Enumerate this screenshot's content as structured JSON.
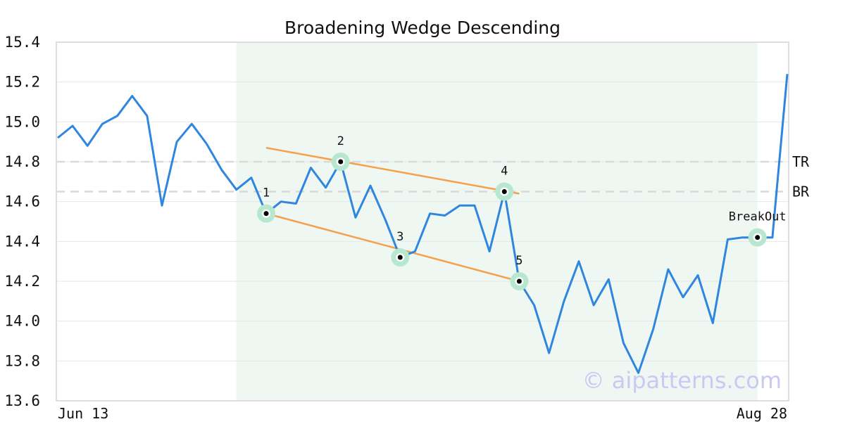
{
  "chart_data": {
    "type": "line",
    "title": "Broadening Wedge Descending",
    "xlabel": "",
    "ylabel": "",
    "ylim": [
      13.6,
      15.4
    ],
    "yticks": [
      13.6,
      13.8,
      14.0,
      14.2,
      14.4,
      14.6,
      14.8,
      15.0,
      15.2,
      15.4
    ],
    "x_tick_labels": [
      {
        "index": 0,
        "label": "Jun 13"
      },
      {
        "index": 49,
        "label": "Aug 28"
      }
    ],
    "grid": true,
    "series": [
      {
        "color": "#2e86de",
        "values": [
          14.92,
          14.98,
          14.88,
          14.99,
          15.03,
          15.13,
          15.03,
          14.58,
          14.9,
          14.99,
          14.89,
          14.76,
          14.66,
          14.72,
          14.54,
          14.6,
          14.59,
          14.77,
          14.67,
          14.8,
          14.52,
          14.68,
          14.51,
          14.32,
          14.35,
          14.54,
          14.53,
          14.58,
          14.58,
          14.35,
          14.65,
          14.2,
          14.08,
          13.84,
          14.1,
          14.3,
          14.08,
          14.21,
          13.89,
          13.74,
          13.96,
          14.26,
          14.12,
          14.23,
          13.99,
          14.41,
          14.42,
          14.42,
          14.42,
          15.24
        ]
      }
    ],
    "pattern_zone": {
      "start_index": 12,
      "end_index": 47,
      "color": "#eff7f3"
    },
    "levels": [
      {
        "label": "TR",
        "value": 14.8
      },
      {
        "label": "BR",
        "value": 14.65
      }
    ],
    "trend_lines": [
      {
        "from": {
          "index": 14,
          "value": 14.87
        },
        "to": {
          "index": 31,
          "value": 14.64
        },
        "color": "#f5a04a"
      },
      {
        "from": {
          "index": 14,
          "value": 14.54
        },
        "to": {
          "index": 31,
          "value": 14.2
        },
        "color": "#f5a04a"
      }
    ],
    "points": [
      {
        "label": "1",
        "index": 14,
        "value": 14.54
      },
      {
        "label": "2",
        "index": 19,
        "value": 14.8
      },
      {
        "label": "3",
        "index": 23,
        "value": 14.32
      },
      {
        "label": "4",
        "index": 30,
        "value": 14.65
      },
      {
        "label": "5",
        "index": 31,
        "value": 14.2
      },
      {
        "label": "BreakOut",
        "index": 47,
        "value": 14.42
      }
    ],
    "watermark": "© aipatterns.com"
  }
}
